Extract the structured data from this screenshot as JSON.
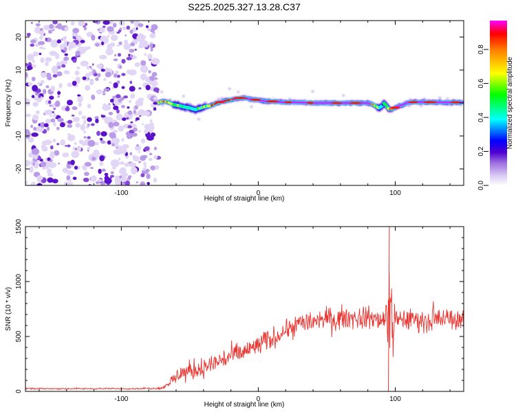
{
  "title": "S225.2025.327.13.28.C37",
  "chart_data": [
    {
      "type": "heatmap",
      "xlabel": "Height of straight line (km)",
      "ylabel": "Frequency (Hz)",
      "xlim": [
        -170,
        150
      ],
      "ylim": [
        -25,
        25
      ],
      "xticks": [
        -100,
        0,
        100
      ],
      "yticks": [
        -20,
        -10,
        0,
        10,
        20
      ],
      "colorbar": {
        "label": "Normalized spectral amplitude",
        "range": [
          0,
          0.97
        ],
        "ticks": [
          "0.0",
          "0.2",
          "0.4",
          "0.6",
          "0.8"
        ],
        "tick_values": [
          0,
          0.2,
          0.4,
          0.6,
          0.8
        ],
        "colors": [
          "#ffffff",
          "#b79ee8",
          "#5a00d0",
          "#0000ff",
          "#00ffff",
          "#00ff00",
          "#ffff00",
          "#ff8000",
          "#ff0000",
          "#ff00ff"
        ]
      },
      "noise_region_km": [
        -170,
        -73
      ],
      "signal_track": {
        "x_km": [
          -73,
          -70,
          -66,
          -62,
          -58,
          -54,
          -50,
          -46,
          -42,
          -38,
          -34,
          -30,
          -26,
          -22,
          -18,
          -14,
          -10,
          -6,
          -2,
          2,
          6,
          10,
          14,
          20,
          30,
          40,
          50,
          60,
          70,
          80,
          84,
          88,
          90,
          92,
          94,
          96,
          98,
          102,
          106,
          110,
          116,
          122,
          130,
          140,
          150
        ],
        "freq_hz": [
          0,
          0.5,
          0.3,
          -0.5,
          -0.8,
          -1.2,
          -1.5,
          -2.0,
          -1.5,
          -1.0,
          -0.8,
          0,
          0.5,
          0.8,
          1.2,
          1.5,
          1.6,
          1.2,
          1.0,
          0.8,
          0.5,
          0.5,
          0.4,
          0.2,
          0.2,
          0,
          0,
          0,
          0,
          0,
          -0.5,
          -1.5,
          -1.0,
          0,
          -1.2,
          -2.0,
          -1.8,
          -1.0,
          -0.5,
          0.2,
          0.3,
          0.3,
          0.2,
          0.2,
          0.2
        ],
        "amplitude": [
          0.5,
          0.6,
          0.6,
          0.5,
          0.4,
          0.35,
          0.3,
          0.3,
          0.4,
          0.5,
          0.6,
          0.7,
          0.8,
          0.7,
          0.8,
          0.7,
          0.8,
          0.9,
          0.85,
          0.9,
          0.95,
          0.9,
          0.9,
          0.95,
          0.95,
          0.95,
          0.95,
          0.9,
          0.9,
          0.85,
          0.7,
          0.35,
          0.2,
          0.3,
          0.4,
          0.6,
          0.7,
          0.8,
          0.85,
          0.9,
          0.9,
          0.95,
          0.95,
          0.9,
          0.9
        ]
      }
    },
    {
      "type": "line",
      "xlabel": "Height of straight line (km)",
      "ylabel": "SNR (10 * v/v)",
      "xlim": [
        -170,
        150
      ],
      "ylim": [
        0,
        1500
      ],
      "xticks": [
        -100,
        0,
        100
      ],
      "yticks": [
        0,
        500,
        1000,
        1500
      ],
      "color": "#e8332e",
      "trend": {
        "x": [
          -170,
          -150,
          -120,
          -90,
          -70,
          -65,
          -60,
          -55,
          -50,
          -45,
          -40,
          -30,
          -20,
          -10,
          0,
          10,
          20,
          30,
          40,
          50,
          60,
          70,
          80,
          90,
          100,
          110,
          120,
          130,
          140,
          150
        ],
        "y": [
          25,
          25,
          25,
          25,
          30,
          80,
          130,
          170,
          190,
          200,
          210,
          270,
          320,
          360,
          420,
          480,
          560,
          620,
          640,
          660,
          670,
          670,
          660,
          655,
          650,
          650,
          660,
          660,
          655,
          660
        ],
        "noise": [
          5,
          5,
          5,
          5,
          8,
          35,
          50,
          60,
          70,
          70,
          70,
          75,
          75,
          75,
          75,
          75,
          75,
          75,
          75,
          75,
          75,
          75,
          75,
          75,
          75,
          75,
          75,
          75,
          75,
          75
        ]
      },
      "burst": {
        "center_km": 96,
        "half_width_km": 4,
        "peak": 1500,
        "trough": 0
      }
    }
  ]
}
